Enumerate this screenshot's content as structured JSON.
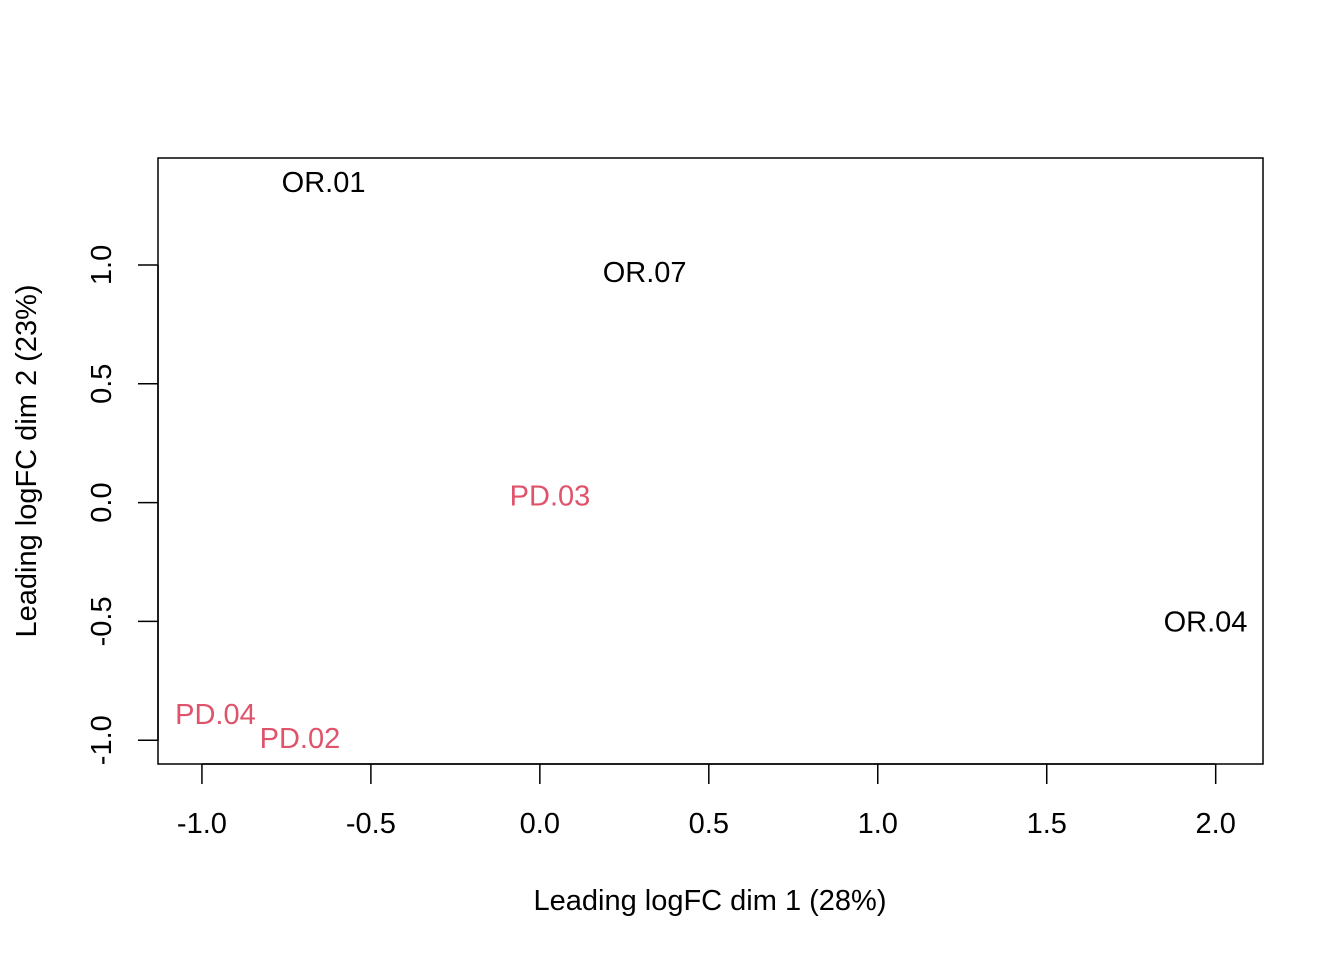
{
  "chart_data": {
    "type": "scatter",
    "title": "",
    "xlabel": "Leading logFC dim 1 (28%)",
    "ylabel": "Leading logFC dim 2 (23%)",
    "xlim": [
      -1.13,
      2.14
    ],
    "ylim": [
      -1.1,
      1.45
    ],
    "xticks": [
      -1.0,
      -0.5,
      0.0,
      0.5,
      1.0,
      1.5,
      2.0
    ],
    "xtick_labels": [
      "-1.0",
      "-0.5",
      "0.0",
      "0.5",
      "1.0",
      "1.5",
      "2.0"
    ],
    "yticks": [
      -1.0,
      -0.5,
      0.0,
      0.5,
      1.0
    ],
    "ytick_labels": [
      "-1.0",
      "-0.5",
      "0.0",
      "0.5",
      "1.0"
    ],
    "grid": false,
    "points": [
      {
        "label": "OR.01",
        "x": -0.64,
        "y": 1.35,
        "group": "OR"
      },
      {
        "label": "OR.07",
        "x": 0.31,
        "y": 0.97,
        "group": "OR"
      },
      {
        "label": "PD.03",
        "x": 0.03,
        "y": 0.03,
        "group": "PD"
      },
      {
        "label": "OR.04",
        "x": 1.97,
        "y": -0.5,
        "group": "OR"
      },
      {
        "label": "PD.04",
        "x": -0.96,
        "y": -0.89,
        "group": "PD"
      },
      {
        "label": "PD.02",
        "x": -0.71,
        "y": -0.99,
        "group": "PD"
      }
    ],
    "group_colors": {
      "OR": "#000000",
      "PD": "#DF536B"
    }
  }
}
